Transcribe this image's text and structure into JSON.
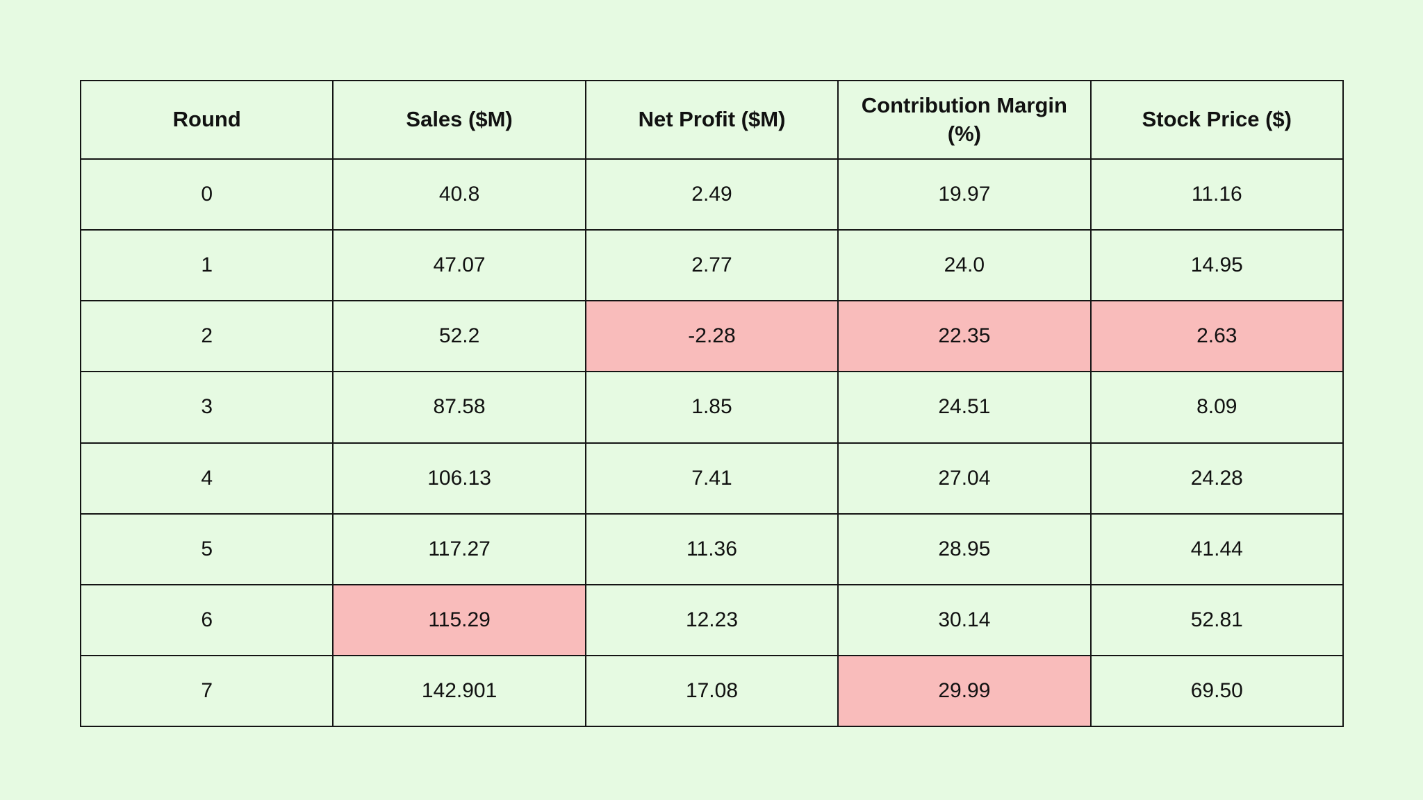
{
  "table": {
    "columns": [
      "Round",
      "Sales ($M)",
      "Net Profit ($M)",
      "Contribution Margin (%)",
      "Stock Price ($)"
    ],
    "rows": [
      {
        "cells": [
          "0",
          "40.8",
          "2.49",
          "19.97",
          "11.16"
        ],
        "highlight": []
      },
      {
        "cells": [
          "1",
          "47.07",
          "2.77",
          "24.0",
          "14.95"
        ],
        "highlight": []
      },
      {
        "cells": [
          "2",
          "52.2",
          "-2.28",
          "22.35",
          "2.63"
        ],
        "highlight": [
          2,
          3,
          4
        ]
      },
      {
        "cells": [
          "3",
          "87.58",
          "1.85",
          "24.51",
          "8.09"
        ],
        "highlight": []
      },
      {
        "cells": [
          "4",
          "106.13",
          "7.41",
          "27.04",
          "24.28"
        ],
        "highlight": []
      },
      {
        "cells": [
          "5",
          "117.27",
          "11.36",
          "28.95",
          "41.44"
        ],
        "highlight": []
      },
      {
        "cells": [
          "6",
          "115.29",
          "12.23",
          "30.14",
          "52.81"
        ],
        "highlight": [
          1
        ]
      },
      {
        "cells": [
          "7",
          "142.901",
          "17.08",
          "29.99",
          "69.50"
        ],
        "highlight": [
          3
        ]
      }
    ]
  },
  "chart_data": {
    "type": "table",
    "columns": [
      "Round",
      "Sales ($M)",
      "Net Profit ($M)",
      "Contribution Margin (%)",
      "Stock Price ($)"
    ],
    "rows": [
      [
        0,
        40.8,
        2.49,
        19.97,
        11.16
      ],
      [
        1,
        47.07,
        2.77,
        24.0,
        14.95
      ],
      [
        2,
        52.2,
        -2.28,
        22.35,
        2.63
      ],
      [
        3,
        87.58,
        1.85,
        24.51,
        8.09
      ],
      [
        4,
        106.13,
        7.41,
        27.04,
        24.28
      ],
      [
        5,
        117.27,
        11.36,
        28.95,
        41.44
      ],
      [
        6,
        115.29,
        12.23,
        30.14,
        52.81
      ],
      [
        7,
        142.901,
        17.08,
        29.99,
        69.5
      ]
    ],
    "highlighted_cells": [
      {
        "round": 2,
        "columns": [
          "Net Profit ($M)",
          "Contribution Margin (%)",
          "Stock Price ($)"
        ]
      },
      {
        "round": 6,
        "columns": [
          "Sales ($M)"
        ]
      },
      {
        "round": 7,
        "columns": [
          "Contribution Margin (%)"
        ]
      }
    ],
    "legend_position": "none",
    "grid": true
  },
  "colors": {
    "page_bg": "#e6fae2",
    "cell_bg": "#e6fae2",
    "highlight_bg": "#f9bcbb",
    "border": "#141414",
    "text": "#111111"
  }
}
